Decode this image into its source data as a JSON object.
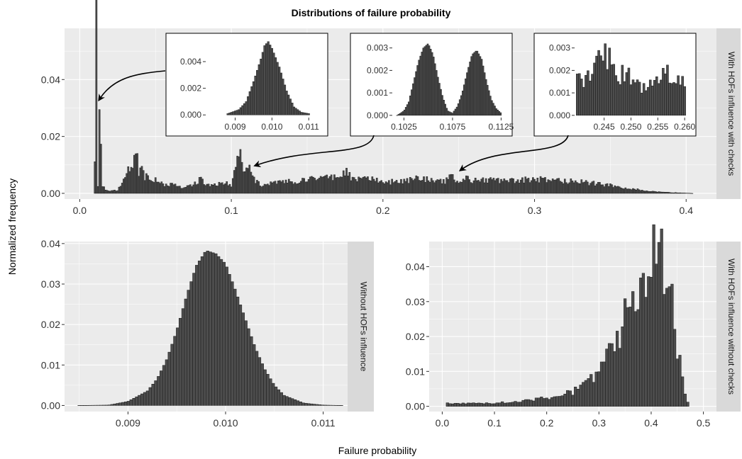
{
  "title": "Distributions of failure probability",
  "xlabel": "Failure probability",
  "ylabel": "Normalized frequency",
  "chart_data": [
    {
      "id": "top",
      "type": "bar",
      "strip": "With HOFs influence with checks",
      "xlim": [
        -0.01,
        0.42
      ],
      "ylim": [
        -0.002,
        0.058
      ],
      "xticks": [
        0.0,
        0.1,
        0.2,
        0.3,
        0.4
      ],
      "xtick_labels": [
        "0.0",
        "0.1",
        "0.2",
        "0.3",
        "0.4"
      ],
      "yticks": [
        0.0,
        0.02,
        0.04
      ],
      "ytick_labels": [
        "0.00",
        "0.02",
        "0.04"
      ],
      "bin_width": 0.001,
      "x": [
        0.01,
        0.011,
        0.012,
        0.013,
        0.015,
        0.017,
        0.025,
        0.038,
        0.039,
        0.041,
        0.043,
        0.045,
        0.047,
        0.052,
        0.055,
        0.06,
        0.07,
        0.075,
        0.078,
        0.08,
        0.082,
        0.085,
        0.09,
        0.095,
        0.1,
        0.103,
        0.105,
        0.106,
        0.107,
        0.108,
        0.11,
        0.112,
        0.115,
        0.12,
        0.13,
        0.14,
        0.15,
        0.16,
        0.17,
        0.175,
        0.18,
        0.19,
        0.2,
        0.21,
        0.22,
        0.23,
        0.24,
        0.245,
        0.25,
        0.255,
        0.26,
        0.27,
        0.28,
        0.29,
        0.3,
        0.31,
        0.32,
        0.33,
        0.34,
        0.35,
        0.36,
        0.37,
        0.38,
        0.39,
        0.4,
        0.404
      ],
      "values": [
        0.011,
        0.0565,
        0.003,
        0.026,
        0.003,
        0.001,
        0.001,
        0.0135,
        0.006,
        0.01,
        0.005,
        0.007,
        0.004,
        0.005,
        0.003,
        0.003,
        0.002,
        0.003,
        0.004,
        0.007,
        0.004,
        0.003,
        0.003,
        0.004,
        0.003,
        0.01,
        0.0135,
        0.015,
        0.012,
        0.009,
        0.01,
        0.008,
        0.005,
        0.003,
        0.004,
        0.004,
        0.005,
        0.005,
        0.006,
        0.008,
        0.005,
        0.005,
        0.004,
        0.004,
        0.005,
        0.005,
        0.004,
        0.0058,
        0.0045,
        0.005,
        0.0045,
        0.0045,
        0.0045,
        0.0045,
        0.005,
        0.0045,
        0.0042,
        0.004,
        0.0035,
        0.0028,
        0.002,
        0.0012,
        0.0006,
        0.0003,
        0.0001,
        0.0
      ],
      "insets": [
        {
          "id": "inset1",
          "xlim": [
            0.0082,
            0.0114
          ],
          "ylim": [
            -0.0002,
            0.0057
          ],
          "xticks": [
            0.009,
            0.01,
            0.011
          ],
          "xtick_labels": [
            "0.009",
            "0.010",
            "0.011"
          ],
          "yticks": [
            0.0,
            0.002,
            0.004
          ],
          "ytick_labels": [
            "0.000",
            "0.002",
            "0.004"
          ],
          "bin_width": 5e-05,
          "x": [
            0.0088,
            0.0091,
            0.0093,
            0.0095,
            0.0097,
            0.0098,
            0.0099,
            0.01,
            0.0102,
            0.0104,
            0.0106,
            0.0108,
            0.011
          ],
          "values": [
            0.0001,
            0.0004,
            0.001,
            0.0025,
            0.0042,
            0.0052,
            0.0055,
            0.005,
            0.0036,
            0.0018,
            0.0006,
            0.0002,
            0.0001
          ]
        },
        {
          "id": "inset2",
          "xlim": [
            0.1013,
            0.1132
          ],
          "ylim": [
            -0.0001,
            0.0034
          ],
          "xticks": [
            0.1025,
            0.1075,
            0.1125
          ],
          "xtick_labels": [
            "0.1025",
            "0.1075",
            "0.1125"
          ],
          "yticks": [
            0.0,
            0.001,
            0.002,
            0.003
          ],
          "ytick_labels": [
            "0.000",
            "0.001",
            "0.002",
            "0.003"
          ],
          "bin_width": 0.00015,
          "x": [
            0.1018,
            0.1025,
            0.103,
            0.1035,
            0.104,
            0.1045,
            0.105,
            0.1055,
            0.106,
            0.1065,
            0.107,
            0.1075,
            0.108,
            0.1085,
            0.109,
            0.1095,
            0.11,
            0.1105,
            0.111,
            0.1115,
            0.112,
            0.1125
          ],
          "values": [
            0.0,
            0.0002,
            0.0006,
            0.0015,
            0.0024,
            0.003,
            0.0032,
            0.0027,
            0.0017,
            0.0008,
            0.0002,
            0.0001,
            0.0004,
            0.001,
            0.0019,
            0.0027,
            0.0029,
            0.0025,
            0.0015,
            0.0007,
            0.0003,
            0.0001
          ]
        },
        {
          "id": "inset3",
          "xlim": [
            0.2395,
            0.2613
          ],
          "ylim": [
            -0.0001,
            0.0034
          ],
          "xticks": [
            0.245,
            0.25,
            0.255,
            0.26
          ],
          "xtick_labels": [
            "0.245",
            "0.250",
            "0.255",
            "0.260"
          ],
          "yticks": [
            0.0,
            0.001,
            0.002,
            0.003
          ],
          "ytick_labels": [
            "0.000",
            "0.001",
            "0.002",
            "0.003"
          ],
          "bin_width": 0.0004,
          "x": [
            0.24,
            0.241,
            0.242,
            0.243,
            0.244,
            0.245,
            0.246,
            0.247,
            0.248,
            0.249,
            0.25,
            0.251,
            0.252,
            0.253,
            0.254,
            0.255,
            0.256,
            0.257,
            0.258,
            0.259,
            0.26
          ],
          "values": [
            0.0015,
            0.0016,
            0.0017,
            0.002,
            0.0024,
            0.0028,
            0.0025,
            0.002,
            0.0018,
            0.0018,
            0.0017,
            0.0014,
            0.0012,
            0.0011,
            0.0014,
            0.0016,
            0.0017,
            0.0019,
            0.0018,
            0.0016,
            0.0013
          ]
        }
      ]
    },
    {
      "id": "bottom-left",
      "type": "bar",
      "strip": "Without HOFs influence",
      "xlim": [
        0.00835,
        0.01125
      ],
      "ylim": [
        -0.0015,
        0.0405
      ],
      "xticks": [
        0.009,
        0.01,
        0.011
      ],
      "xtick_labels": [
        "0.009",
        "0.010",
        "0.011"
      ],
      "yticks": [
        0.0,
        0.01,
        0.02,
        0.03,
        0.04
      ],
      "ytick_labels": [
        "0.00",
        "0.01",
        "0.02",
        "0.03",
        "0.04"
      ],
      "bin_width": 2.8e-05,
      "x": [
        0.0085,
        0.0088,
        0.009,
        0.0092,
        0.0093,
        0.0094,
        0.0095,
        0.0096,
        0.0097,
        0.0098,
        0.0099,
        0.01,
        0.0101,
        0.0102,
        0.0103,
        0.0104,
        0.0105,
        0.0106,
        0.0108,
        0.011,
        0.0112
      ],
      "values": [
        0.0,
        0.0001,
        0.001,
        0.0036,
        0.0066,
        0.0115,
        0.0185,
        0.027,
        0.0345,
        0.0383,
        0.0375,
        0.035,
        0.0285,
        0.0215,
        0.0145,
        0.009,
        0.005,
        0.0025,
        0.0006,
        0.0001,
        0.0
      ]
    },
    {
      "id": "bottom-right",
      "type": "bar",
      "strip": "With HOFs influence without checks",
      "xlim": [
        -0.025,
        0.525
      ],
      "ylim": [
        -0.0015,
        0.0472
      ],
      "xticks": [
        0.0,
        0.1,
        0.2,
        0.3,
        0.4,
        0.5
      ],
      "xtick_labels": [
        "0.0",
        "0.1",
        "0.2",
        "0.3",
        "0.4",
        "0.5"
      ],
      "yticks": [
        0.0,
        0.01,
        0.02,
        0.03,
        0.04
      ],
      "ytick_labels": [
        "0.00",
        "0.01",
        "0.02",
        "0.03",
        "0.04"
      ],
      "bin_width": 0.005,
      "x": [
        0.01,
        0.05,
        0.1,
        0.15,
        0.2,
        0.25,
        0.28,
        0.3,
        0.32,
        0.34,
        0.36,
        0.38,
        0.39,
        0.4,
        0.41,
        0.42,
        0.43,
        0.44,
        0.45,
        0.46,
        0.47
      ],
      "values": [
        0.001,
        0.0008,
        0.001,
        0.0015,
        0.0025,
        0.004,
        0.007,
        0.01,
        0.015,
        0.022,
        0.029,
        0.036,
        0.04,
        0.044,
        0.0445,
        0.042,
        0.037,
        0.029,
        0.018,
        0.007,
        0.001
      ]
    }
  ]
}
